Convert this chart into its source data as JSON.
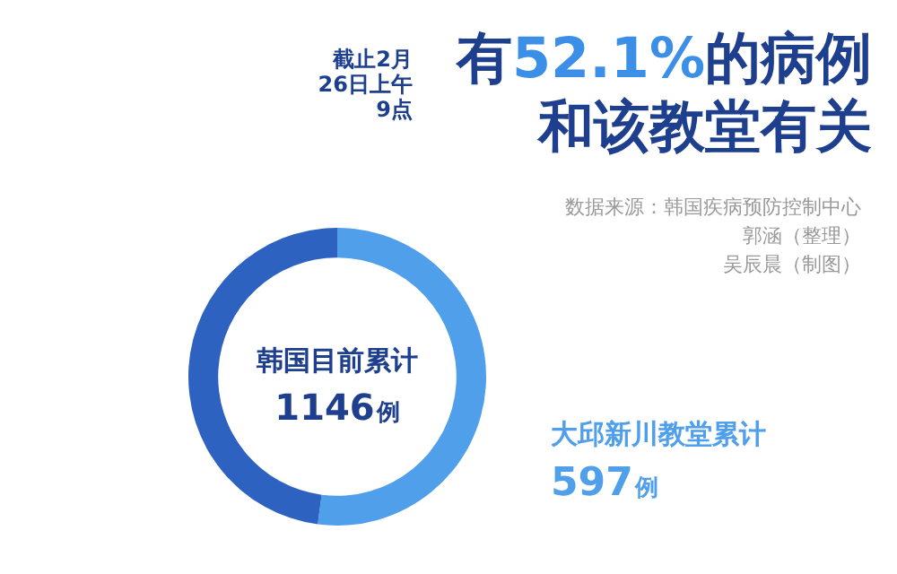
{
  "chart_data": {
    "type": "donut",
    "title": "截止2月26日上午9点",
    "subtitle": "有52.1%的病例和该教堂有关",
    "categories": [
      "大邱新川教堂累计",
      null
    ],
    "values": [
      597,
      549
    ],
    "colors": [
      "#4f9fea",
      "#2d62c0"
    ],
    "value_labels": [
      "597例",
      null
    ],
    "annotations": [
      "韩国目前累计",
      "1146例",
      "数据来源：韩国疾病预防控制中心",
      "郭涵（整理）",
      "吴辰晨（制图）"
    ],
    "legend": false
  }
}
